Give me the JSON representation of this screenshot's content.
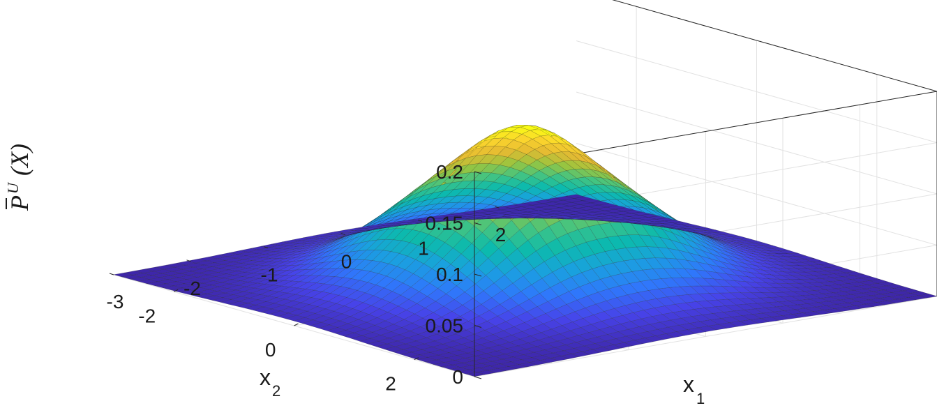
{
  "chart_data": {
    "type": "surface",
    "title": "",
    "xlabel": "x",
    "xlabel_subscript": "1",
    "ylabel": "x",
    "ylabel_subscript": "2",
    "zlabel": "P",
    "zlabel_superscript": "U",
    "zlabel_argument": "(X)",
    "xlim": [
      -3,
      3
    ],
    "ylim": [
      -3,
      3
    ],
    "zlim": [
      0,
      0.2
    ],
    "x_ticks": [
      "-3",
      "-2",
      "-1",
      "0",
      "1",
      "2"
    ],
    "x_tick_values": [
      -3,
      -2,
      -1,
      0,
      1,
      2
    ],
    "y_ticks": [
      "-2",
      "0",
      "2"
    ],
    "y_tick_values": [
      -2,
      0,
      2
    ],
    "z_ticks": [
      "0",
      "0.05",
      "0.1",
      "0.15",
      "0.2"
    ],
    "z_tick_values": [
      0,
      0.05,
      0.1,
      0.15,
      0.2
    ],
    "peak_value": 0.147,
    "peak_location": [
      0,
      0
    ],
    "colormap": "parula",
    "colormap_stops": [
      "#3e26a8",
      "#4743e9",
      "#2f78fb",
      "#1aa0e0",
      "#0cbaad",
      "#44c481",
      "#9bc53e",
      "#e5ba32",
      "#fbd52d",
      "#f9fb15"
    ],
    "grid": true,
    "edge_color": "#222222"
  }
}
